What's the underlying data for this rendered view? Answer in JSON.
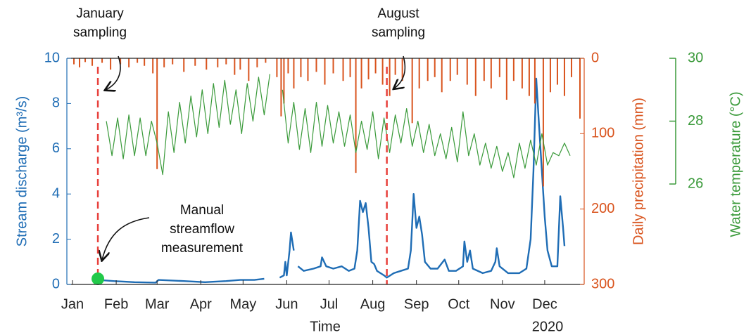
{
  "chart_data": {
    "type": "line",
    "xlabel": "Time",
    "x_year_label": "2020",
    "ylabel": "Stream discharge (m³/s)",
    "y2label": "Daily precipitation (mm)",
    "y3label": "Water temperature (°C)",
    "xlim": [
      -3,
      364
    ],
    "xticks": [
      {
        "value": 1,
        "label": "Jan"
      },
      {
        "value": 32,
        "label": "Feb"
      },
      {
        "value": 61,
        "label": "Mar"
      },
      {
        "value": 92,
        "label": "Apr"
      },
      {
        "value": 122,
        "label": "May"
      },
      {
        "value": 153,
        "label": "Jun"
      },
      {
        "value": 183,
        "label": "Jul"
      },
      {
        "value": 214,
        "label": "Aug"
      },
      {
        "value": 245,
        "label": "Sep"
      },
      {
        "value": 275,
        "label": "Oct"
      },
      {
        "value": 306,
        "label": "Nov"
      },
      {
        "value": 336,
        "label": "Dec"
      }
    ],
    "ylim": [
      0,
      10
    ],
    "yticks": [
      0,
      2,
      4,
      6,
      8,
      10
    ],
    "y2lim": [
      0,
      300
    ],
    "y2ticks": [
      0,
      100,
      200,
      300
    ],
    "y2_reversed": true,
    "y3lim": [
      26,
      30
    ],
    "y3ticks": [
      26,
      28,
      30
    ],
    "series": [
      {
        "type": "line",
        "axis": "y",
        "color": "#1f6db5",
        "x": [
          19,
          30,
          45,
          60,
          62,
          80,
          95,
          110,
          120,
          130,
          137,
          142,
          148,
          151,
          152,
          153,
          155,
          156,
          158,
          159,
          161,
          165,
          172,
          177,
          178,
          181,
          186,
          192,
          197,
          201,
          203,
          205,
          207,
          209,
          211,
          213,
          215,
          217,
          222,
          224,
          229,
          234,
          239,
          241,
          243,
          245,
          247,
          249,
          251,
          255,
          260,
          265,
          268,
          273,
          278,
          279,
          281,
          283,
          285,
          292,
          298,
          301,
          302,
          304,
          310,
          318,
          323,
          326,
          328,
          330,
          332,
          334,
          336,
          338,
          341,
          345,
          347,
          349,
          350
        ],
        "values": [
          0.2,
          0.15,
          0.1,
          0.08,
          0.2,
          0.15,
          0.1,
          0.15,
          0.2,
          0.2,
          0.25,
          null,
          0.3,
          0.4,
          1.0,
          0.4,
          1.5,
          2.3,
          1.5,
          null,
          0.8,
          0.6,
          0.7,
          0.8,
          1.2,
          0.8,
          0.7,
          0.8,
          0.6,
          0.7,
          1.5,
          3.7,
          3.2,
          3.6,
          2.5,
          1.0,
          0.9,
          0.6,
          0.4,
          0.3,
          0.5,
          0.6,
          0.7,
          1.5,
          4.0,
          2.5,
          3.0,
          2.2,
          1.0,
          0.7,
          0.7,
          1.1,
          0.6,
          0.6,
          0.8,
          1.9,
          1.0,
          1.5,
          0.7,
          0.5,
          0.6,
          1.0,
          1.6,
          0.8,
          0.5,
          0.5,
          0.7,
          2.0,
          5.0,
          9.1,
          7.0,
          5.0,
          3.0,
          1.5,
          0.8,
          0.8,
          3.9,
          2.5,
          1.7
        ]
      },
      {
        "type": "bar",
        "axis": "y2",
        "color": "#d9541e",
        "x": [
          2,
          6,
          10,
          15,
          22,
          28,
          35,
          41,
          47,
          52,
          58,
          61,
          66,
          72,
          80,
          88,
          96,
          104,
          110,
          116,
          120,
          126,
          132,
          138,
          146,
          149,
          151,
          154,
          158,
          163,
          168,
          174,
          180,
          186,
          193,
          198,
          202,
          206,
          211,
          216,
          221,
          226,
          230,
          235,
          242,
          247,
          253,
          258,
          263,
          269,
          274,
          281,
          287,
          293,
          298,
          304,
          309,
          314,
          320,
          325,
          329,
          335,
          340,
          345,
          350,
          355,
          361
        ],
        "values": [
          8,
          12,
          5,
          10,
          6,
          15,
          8,
          12,
          6,
          10,
          20,
          147,
          12,
          8,
          18,
          10,
          15,
          12,
          8,
          22,
          15,
          30,
          12,
          6,
          25,
          77,
          60,
          20,
          40,
          25,
          30,
          18,
          35,
          20,
          30,
          25,
          152,
          40,
          28,
          20,
          35,
          50,
          22,
          30,
          86,
          40,
          30,
          25,
          45,
          30,
          22,
          35,
          50,
          30,
          40,
          25,
          55,
          30,
          40,
          50,
          60,
          170,
          45,
          35,
          50,
          25,
          80
        ]
      },
      {
        "type": "line",
        "axis": "y3",
        "color": "#3a9a3a",
        "x": [
          25,
          29,
          33,
          37,
          41,
          45,
          49,
          53,
          57,
          61,
          65,
          69,
          73,
          77,
          81,
          85,
          89,
          93,
          97,
          101,
          105,
          109,
          113,
          117,
          121,
          125,
          129,
          133,
          137,
          141,
          145,
          150,
          154,
          158,
          162,
          166,
          170,
          174,
          178,
          182,
          186,
          190,
          194,
          198,
          202,
          206,
          210,
          214,
          218,
          222,
          226,
          230,
          234,
          238,
          242,
          246,
          250,
          254,
          258,
          262,
          266,
          270,
          274,
          278,
          282,
          286,
          290,
          294,
          298,
          302,
          306,
          310,
          314,
          318,
          322,
          326,
          330,
          334,
          338,
          342,
          346,
          350,
          354
        ],
        "values": [
          28.0,
          26.9,
          28.1,
          26.8,
          28.2,
          26.9,
          28.1,
          26.9,
          28.0,
          27.3,
          26.3,
          28.3,
          27.0,
          28.6,
          27.3,
          28.8,
          27.5,
          29.0,
          27.6,
          29.2,
          27.8,
          29.3,
          27.9,
          29.0,
          27.6,
          29.2,
          28.0,
          29.4,
          28.2,
          29.5,
          null,
          29.0,
          27.3,
          28.6,
          27.1,
          28.4,
          27.0,
          28.6,
          27.2,
          28.5,
          27.3,
          28.3,
          27.2,
          28.2,
          27.0,
          28.0,
          27.1,
          28.3,
          26.8,
          28.1,
          27.0,
          28.2,
          27.3,
          28.4,
          27.2,
          28.0,
          27.0,
          27.9,
          26.9,
          27.6,
          26.8,
          27.8,
          26.7,
          28.3,
          26.9,
          27.6,
          26.6,
          27.3,
          26.5,
          27.2,
          26.4,
          27.0,
          26.2,
          27.3,
          26.5,
          27.4,
          26.6,
          27.6,
          26.6,
          27.0,
          26.9,
          27.3,
          26.9
        ]
      }
    ],
    "vlines": [
      {
        "x": 19,
        "color": "#e8413c"
      },
      {
        "x": 224,
        "color": "#e8413c"
      }
    ],
    "markers": [
      {
        "x": 19,
        "value": 0.25,
        "color": "#22c94a"
      }
    ],
    "annotations": [
      {
        "lines": [
          "January",
          "sampling"
        ]
      },
      {
        "lines": [
          "August",
          "sampling"
        ]
      },
      {
        "lines": [
          "Manual",
          "streamflow",
          "measurement"
        ]
      }
    ]
  }
}
